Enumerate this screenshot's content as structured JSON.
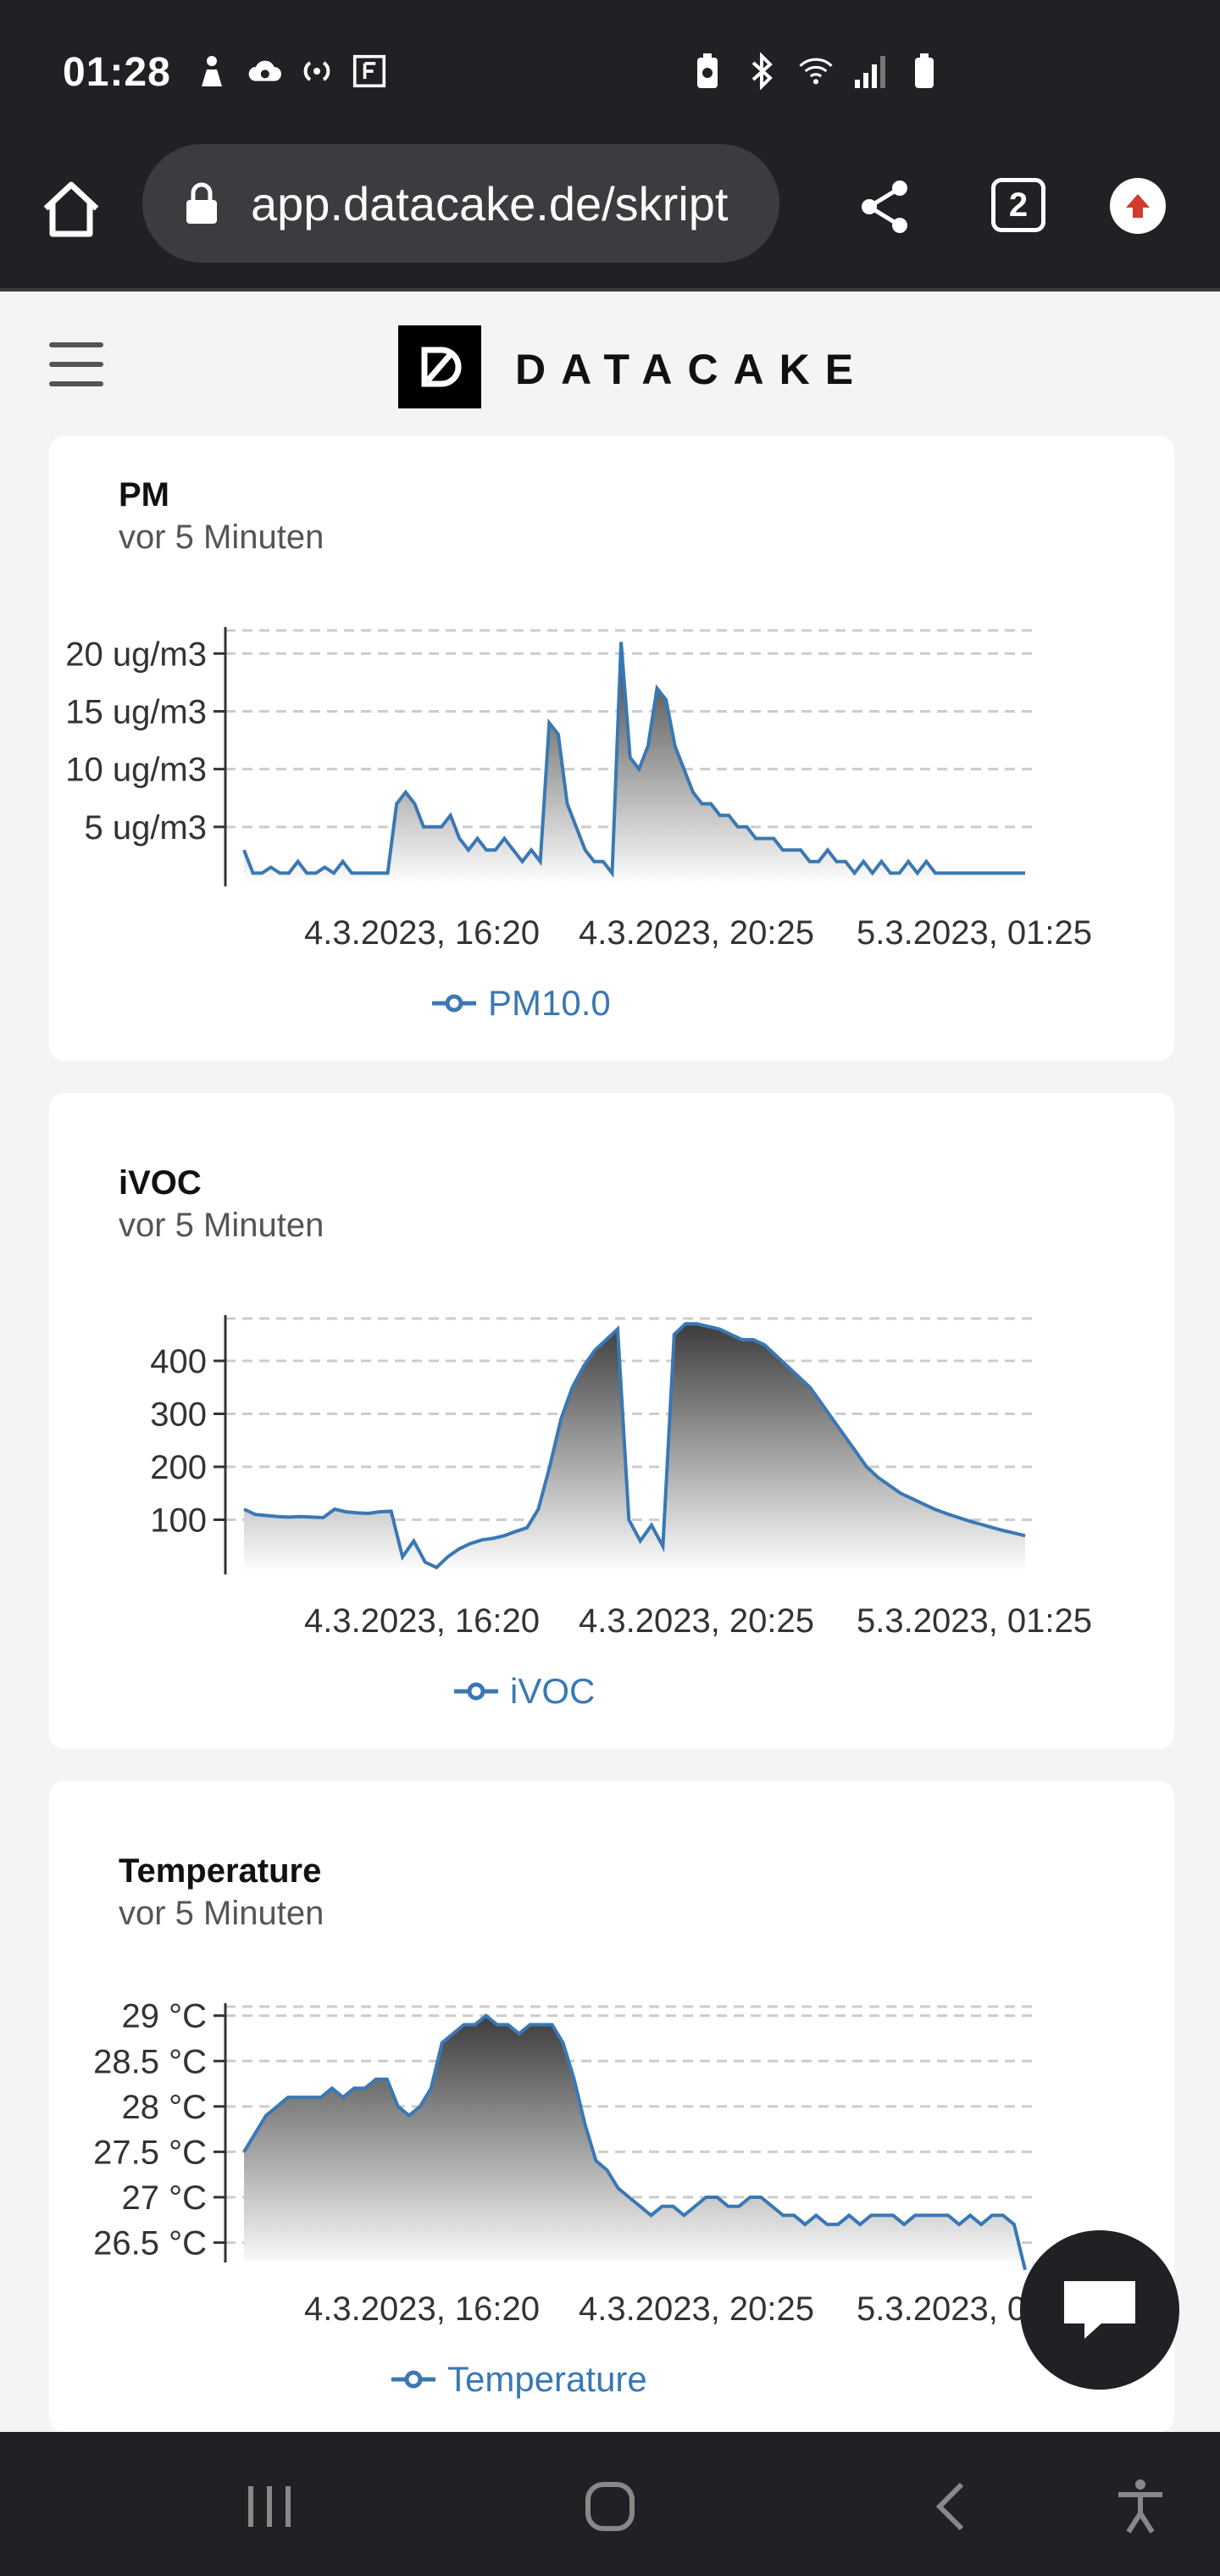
{
  "status_bar": {
    "time": "01:28",
    "icons_left": [
      "person-icon",
      "cloud-sync-icon",
      "nfc-icon",
      "f-box-icon"
    ],
    "icons_right": [
      "battery-saver-icon",
      "bluetooth-icon",
      "wifi-icon",
      "signal-icon",
      "battery-icon"
    ]
  },
  "browser": {
    "url": "app.datacake.de/skript",
    "tab_count": "2"
  },
  "header": {
    "brand": "DATACAKE"
  },
  "cards": [
    {
      "title": "PM",
      "subtitle": "vor 5 Minuten",
      "legend": "PM10.0",
      "y_ticks": [
        "20 ug/m3",
        "15 ug/m3",
        "10 ug/m3",
        "5 ug/m3"
      ],
      "x_ticks": [
        "4.3.2023, 16:20",
        "4.3.2023, 20:25",
        "5.3.2023, 01:25"
      ]
    },
    {
      "title": "iVOC",
      "subtitle": "vor 5 Minuten",
      "legend": "iVOC",
      "y_ticks": [
        "400",
        "300",
        "200",
        "100"
      ],
      "x_ticks": [
        "4.3.2023, 16:20",
        "4.3.2023, 20:25",
        "5.3.2023, 01:25"
      ]
    },
    {
      "title": "Temperature",
      "subtitle": "vor 5 Minuten",
      "legend": "Temperature",
      "y_ticks": [
        "29 °C",
        "28.5 °C",
        "28 °C",
        "27.5 °C",
        "27 °C",
        "26.5 °C"
      ],
      "x_ticks": [
        "4.3.2023, 16:20",
        "4.3.2023, 20:25",
        "5.3.2023, 01:25"
      ]
    }
  ],
  "chart_data": [
    {
      "type": "area",
      "title": "PM",
      "series": [
        {
          "name": "PM10.0",
          "values": [
            3,
            1,
            1,
            1.5,
            1,
            1,
            2,
            1,
            1,
            1.5,
            1,
            2,
            1,
            1,
            1,
            1,
            1,
            7,
            8,
            7,
            5,
            5,
            5,
            6,
            4,
            3,
            4,
            3,
            3,
            4,
            3,
            2,
            3,
            2,
            14,
            13,
            7,
            5,
            3,
            2,
            2,
            1,
            21,
            11,
            10,
            12,
            17,
            16,
            12,
            10,
            8,
            7,
            7,
            6,
            6,
            5,
            5,
            4,
            4,
            4,
            3,
            3,
            3,
            2,
            2,
            3,
            2,
            2,
            1,
            2,
            1,
            2,
            1,
            1,
            2,
            1,
            2,
            1,
            1,
            1,
            1,
            1,
            1,
            1,
            1,
            1,
            1,
            1
          ]
        }
      ],
      "ylim": [
        0,
        22
      ],
      "yticks": [
        5,
        10,
        15,
        20
      ],
      "colors": {
        "line": "#3a78b4"
      },
      "grid": true
    },
    {
      "type": "area",
      "title": "iVOC",
      "series": [
        {
          "name": "iVOC",
          "values": [
            120,
            110,
            108,
            106,
            105,
            106,
            105,
            104,
            120,
            115,
            113,
            112,
            115,
            116,
            30,
            60,
            20,
            10,
            30,
            45,
            55,
            62,
            65,
            70,
            78,
            85,
            120,
            200,
            290,
            350,
            390,
            420,
            440,
            460,
            100,
            60,
            90,
            50,
            450,
            470,
            470,
            465,
            460,
            450,
            440,
            440,
            430,
            410,
            390,
            370,
            350,
            320,
            290,
            260,
            230,
            200,
            180,
            165,
            150,
            140,
            130,
            120,
            112,
            105,
            98,
            92,
            86,
            80,
            75,
            70
          ]
        }
      ],
      "ylim": [
        0,
        480
      ],
      "yticks": [
        100,
        200,
        300,
        400
      ],
      "colors": {
        "line": "#3a78b4"
      },
      "grid": true
    },
    {
      "type": "area",
      "title": "Temperature",
      "series": [
        {
          "name": "Temperature",
          "values": [
            27.5,
            27.7,
            27.9,
            28.0,
            28.1,
            28.1,
            28.1,
            28.1,
            28.2,
            28.1,
            28.2,
            28.2,
            28.3,
            28.3,
            28.0,
            27.9,
            28.0,
            28.2,
            28.7,
            28.8,
            28.9,
            28.9,
            29.0,
            28.9,
            28.9,
            28.8,
            28.9,
            28.9,
            28.9,
            28.7,
            28.3,
            27.8,
            27.4,
            27.3,
            27.1,
            27.0,
            26.9,
            26.8,
            26.9,
            26.9,
            26.8,
            26.9,
            27.0,
            27.0,
            26.9,
            26.9,
            27.0,
            27.0,
            26.9,
            26.8,
            26.8,
            26.7,
            26.8,
            26.7,
            26.7,
            26.8,
            26.7,
            26.8,
            26.8,
            26.8,
            26.7,
            26.8,
            26.8,
            26.8,
            26.8,
            26.7,
            26.8,
            26.7,
            26.8,
            26.8,
            26.7,
            26.2
          ]
        }
      ],
      "ylim": [
        26.3,
        29.1
      ],
      "yticks": [
        26.5,
        27,
        27.5,
        28,
        28.5,
        29
      ],
      "colors": {
        "line": "#3a78b4"
      },
      "grid": true
    }
  ]
}
